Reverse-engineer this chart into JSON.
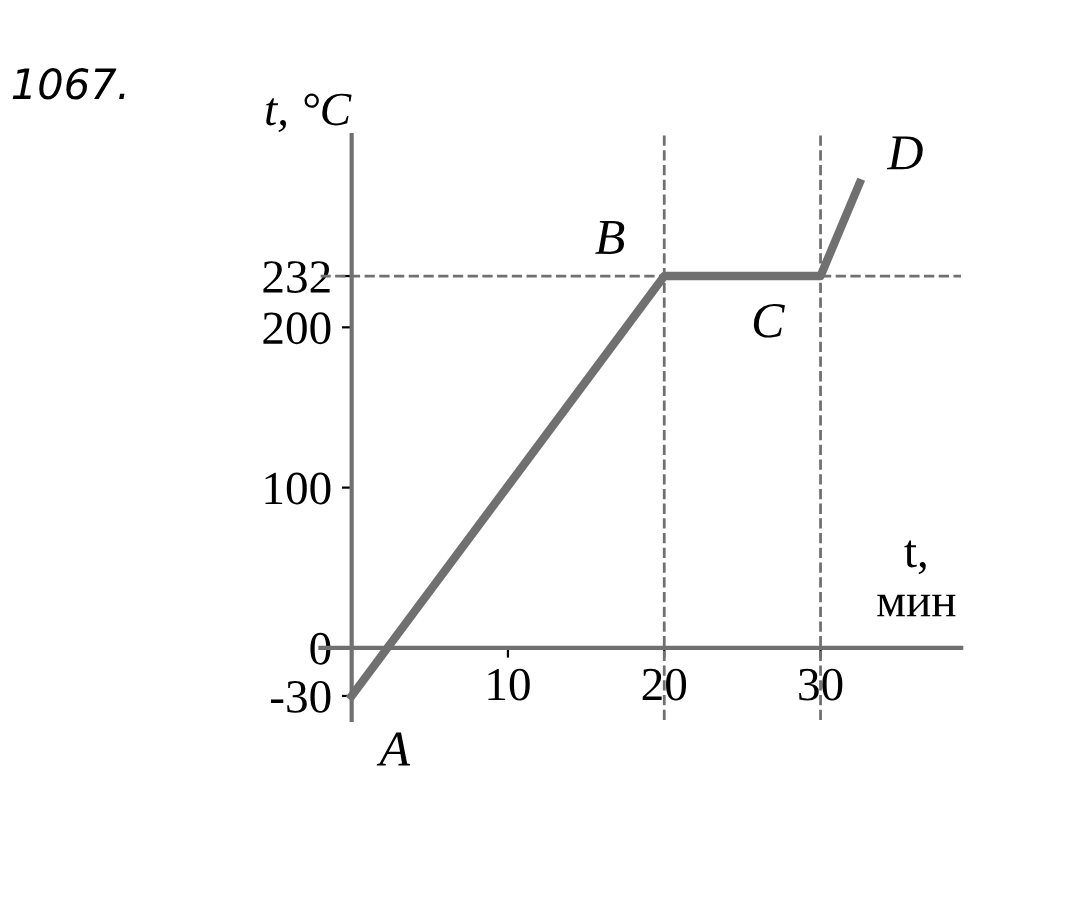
{
  "chart_data": {
    "type": "line",
    "title": "1067.",
    "xlabel": "t,\nмин",
    "ylabel": "t, °C",
    "x": [
      0,
      20,
      30,
      32.5
    ],
    "series": [
      {
        "color": "#707070",
        "values": [
          -30,
          232,
          232,
          290
        ]
      }
    ],
    "xlim": [
      -2,
      39
    ],
    "ylim": [
      -45,
      320
    ],
    "xticks": [
      10,
      20,
      30
    ],
    "yticks": [
      -30,
      0,
      100,
      200,
      232
    ],
    "ref_lines": [
      {
        "axis": "y",
        "value": 232,
        "line_style": "dashed",
        "color": "#707070"
      },
      {
        "axis": "x",
        "value": 20,
        "line_style": "dashed",
        "color": "#707070"
      },
      {
        "axis": "x",
        "value": 30,
        "line_style": "dashed",
        "color": "#707070"
      }
    ],
    "annotations": [
      {
        "text": "A",
        "x": 0,
        "y": -30
      },
      {
        "text": "B",
        "x": 20,
        "y": 232
      },
      {
        "text": "C",
        "x": 30,
        "y": 232
      },
      {
        "text": "D",
        "x": 32.5,
        "y": 290
      }
    ],
    "grid": false,
    "legend": false,
    "marker": "none",
    "line_style": "solid"
  }
}
